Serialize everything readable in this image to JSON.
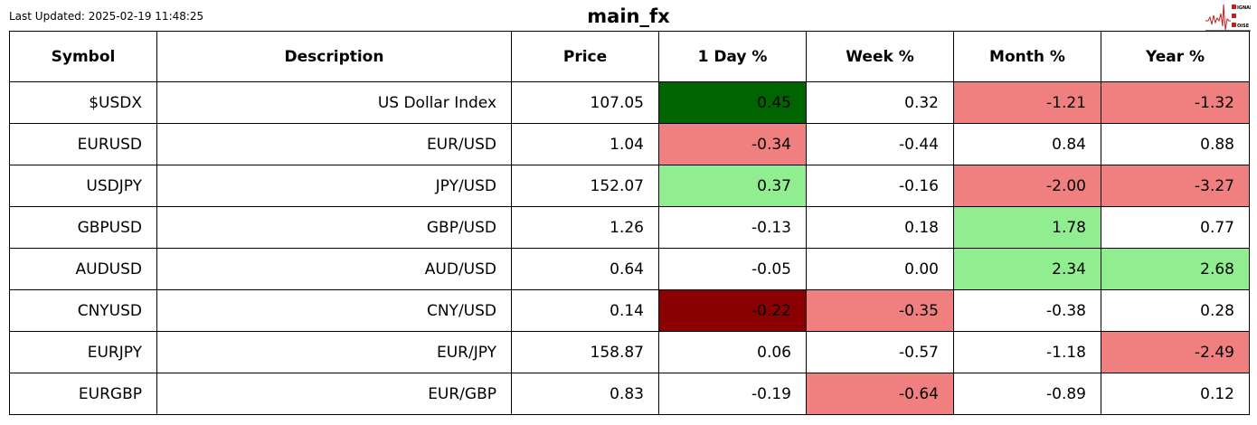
{
  "header": {
    "last_updated": "Last Updated: 2025-02-19 11:48:25",
    "title": "main_fx",
    "logo_text": "SIGNAL 2 NOISE"
  },
  "colors": {
    "dark_green": "#006400",
    "light_green": "#90ee90",
    "light_red": "#f08080",
    "dark_red": "#8b0000"
  },
  "chart_data": {
    "type": "table",
    "columns": [
      "Symbol",
      "Description",
      "Price",
      "1 Day %",
      "Week %",
      "Month %",
      "Year %"
    ],
    "rows": [
      {
        "cells": [
          "$USDX",
          "US Dollar Index",
          "107.05",
          "0.45",
          "0.32",
          "-1.21",
          "-1.32"
        ],
        "bg": [
          "",
          "",
          "",
          "dark_green",
          "",
          "light_red",
          "light_red"
        ]
      },
      {
        "cells": [
          "EURUSD",
          "EUR/USD",
          "1.04",
          "-0.34",
          "-0.44",
          "0.84",
          "0.88"
        ],
        "bg": [
          "",
          "",
          "",
          "light_red",
          "",
          "",
          ""
        ]
      },
      {
        "cells": [
          "USDJPY",
          "JPY/USD",
          "152.07",
          "0.37",
          "-0.16",
          "-2.00",
          "-3.27"
        ],
        "bg": [
          "",
          "",
          "",
          "light_green",
          "",
          "light_red",
          "light_red"
        ]
      },
      {
        "cells": [
          "GBPUSD",
          "GBP/USD",
          "1.26",
          "-0.13",
          "0.18",
          "1.78",
          "0.77"
        ],
        "bg": [
          "",
          "",
          "",
          "",
          "",
          "light_green",
          ""
        ]
      },
      {
        "cells": [
          "AUDUSD",
          "AUD/USD",
          "0.64",
          "-0.05",
          "0.00",
          "2.34",
          "2.68"
        ],
        "bg": [
          "",
          "",
          "",
          "",
          "",
          "light_green",
          "light_green"
        ]
      },
      {
        "cells": [
          "CNYUSD",
          "CNY/USD",
          "0.14",
          "-0.22",
          "-0.35",
          "-0.38",
          "0.28"
        ],
        "bg": [
          "",
          "",
          "",
          "dark_red",
          "light_red",
          "",
          ""
        ]
      },
      {
        "cells": [
          "EURJPY",
          "EUR/JPY",
          "158.87",
          "0.06",
          "-0.57",
          "-1.18",
          "-2.49"
        ],
        "bg": [
          "",
          "",
          "",
          "",
          "",
          "",
          "light_red"
        ]
      },
      {
        "cells": [
          "EURGBP",
          "EUR/GBP",
          "0.83",
          "-0.19",
          "-0.64",
          "-0.89",
          "0.12"
        ],
        "bg": [
          "",
          "",
          "",
          "",
          "light_red",
          "",
          ""
        ]
      }
    ]
  }
}
